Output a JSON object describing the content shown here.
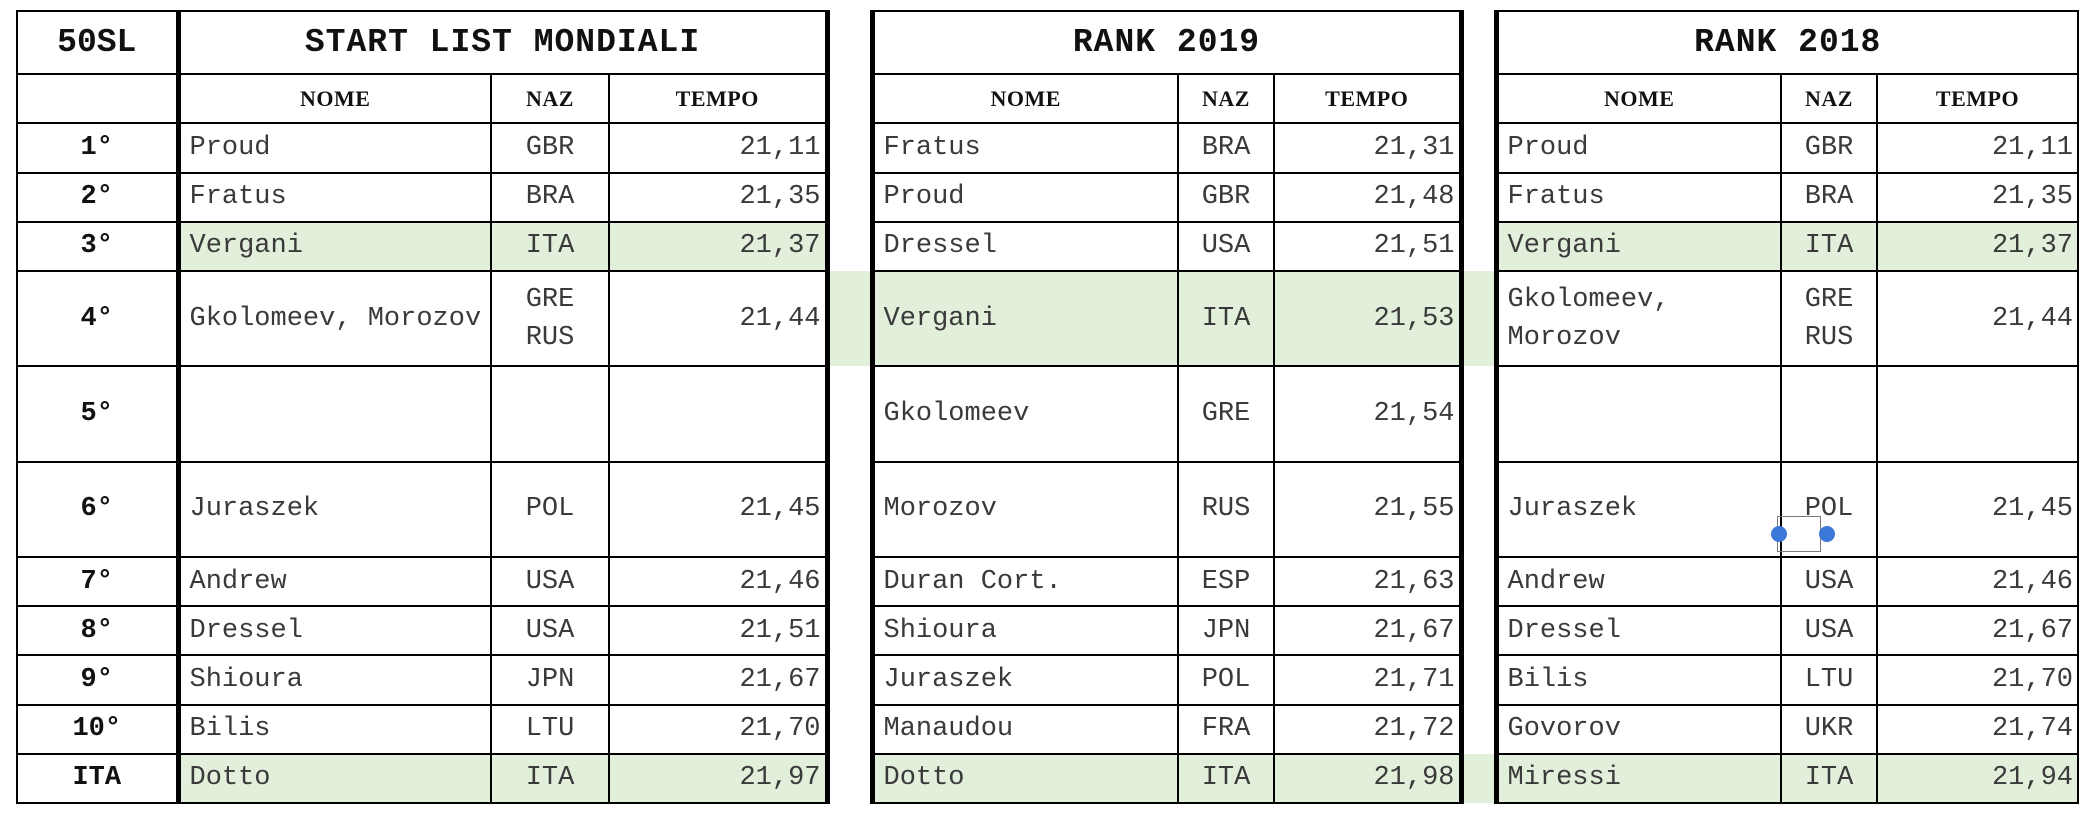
{
  "table": {
    "event": "50SL",
    "titles": [
      "START LIST MONDIALI",
      "RANK 2019",
      "RANK 2018"
    ],
    "col_headers": {
      "name": "NOME",
      "nat": "NAZ",
      "time": "TEMPO"
    },
    "rows": [
      {
        "pos": "1°",
        "cells": [
          {
            "name": "Proud",
            "nat": "GBR",
            "time": "21,11"
          },
          {
            "name": "Fratus",
            "nat": "BRA",
            "time": "21,31"
          },
          {
            "name": "Proud",
            "nat": "GBR",
            "time": "21,11"
          }
        ]
      },
      {
        "pos": "2°",
        "cells": [
          {
            "name": "Fratus",
            "nat": "BRA",
            "time": "21,35"
          },
          {
            "name": "Proud",
            "nat": "GBR",
            "time": "21,48"
          },
          {
            "name": "Fratus",
            "nat": "BRA",
            "time": "21,35"
          }
        ]
      },
      {
        "pos": "3°",
        "cells": [
          {
            "name": "Vergani",
            "nat": "ITA",
            "time": "21,37"
          },
          {
            "name": "Dressel",
            "nat": "USA",
            "time": "21,51"
          },
          {
            "name": "Vergani",
            "nat": "ITA",
            "time": "21,37"
          }
        ]
      },
      {
        "pos": "4°",
        "cells": [
          {
            "name": "Gkolomeev, Morozov",
            "nat_lines": [
              "GRE",
              "RUS"
            ],
            "time": "21,44"
          },
          {
            "name": "Vergani",
            "nat": "ITA",
            "time": "21,53"
          },
          {
            "name_lines": [
              "Gkolomeev,",
              "Morozov"
            ],
            "nat_lines": [
              "GRE",
              "RUS"
            ],
            "time": "21,44"
          }
        ]
      },
      {
        "pos": "5°",
        "cells": [
          {
            "name": "",
            "nat": "",
            "time": ""
          },
          {
            "name": "Gkolomeev",
            "nat": "GRE",
            "time": "21,54"
          },
          {
            "name": "",
            "nat": "",
            "time": ""
          }
        ]
      },
      {
        "pos": "6°",
        "cells": [
          {
            "name": "Juraszek",
            "nat": "POL",
            "time": "21,45"
          },
          {
            "name": "Morozov",
            "nat": "RUS",
            "time": "21,55"
          },
          {
            "name": "Juraszek",
            "nat": "POL",
            "time": "21,45"
          }
        ]
      },
      {
        "pos": "7°",
        "cells": [
          {
            "name": "Andrew",
            "nat": "USA",
            "time": "21,46"
          },
          {
            "name": "Duran Cort.",
            "nat": "ESP",
            "time": "21,63"
          },
          {
            "name": "Andrew",
            "nat": "USA",
            "time": "21,46"
          }
        ]
      },
      {
        "pos": "8°",
        "cells": [
          {
            "name": "Dressel",
            "nat": "USA",
            "time": "21,51"
          },
          {
            "name": "Shioura",
            "nat": "JPN",
            "time": "21,67"
          },
          {
            "name": "Dressel",
            "nat": "USA",
            "time": "21,67"
          }
        ]
      },
      {
        "pos": "9°",
        "cells": [
          {
            "name": "Shioura",
            "nat": "JPN",
            "time": "21,67"
          },
          {
            "name": "Juraszek",
            "nat": "POL",
            "time": "21,71"
          },
          {
            "name": "Bilis",
            "nat": "LTU",
            "time": "21,70"
          }
        ]
      },
      {
        "pos": "10°",
        "cells": [
          {
            "name": "Bilis",
            "nat": "LTU",
            "time": "21,70"
          },
          {
            "name": "Manaudou",
            "nat": "FRA",
            "time": "21,72"
          },
          {
            "name": "Govorov",
            "nat": "UKR",
            "time": "21,74"
          }
        ]
      },
      {
        "pos": "ITA",
        "cells": [
          {
            "name": "Dotto",
            "nat": "ITA",
            "time": "21,97"
          },
          {
            "name": "Dotto",
            "nat": "ITA",
            "time": "21,98"
          },
          {
            "name": "Miressi",
            "nat": "ITA",
            "time": "21,94"
          }
        ]
      }
    ]
  },
  "colors": {
    "highlight": "#e2efda",
    "border": "#000000",
    "handle": "#3b78d8"
  },
  "icons": {
    "selection_handles": "resize-handle-icon"
  }
}
